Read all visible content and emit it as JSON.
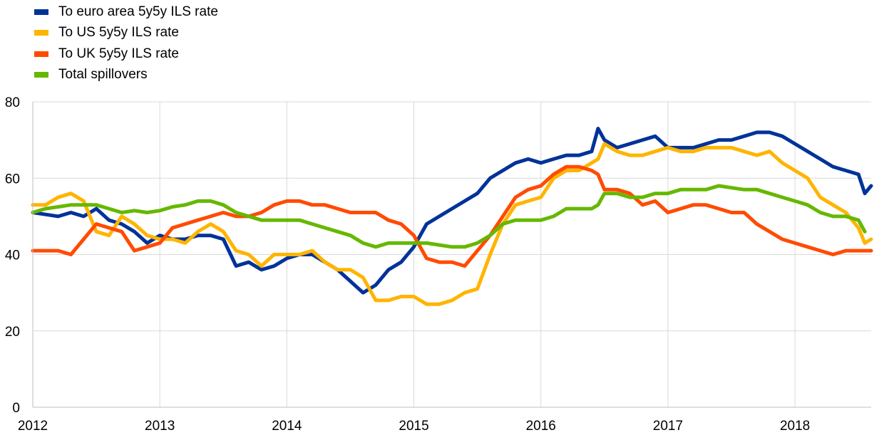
{
  "chart_data": {
    "type": "line",
    "title": "",
    "xlabel": "",
    "ylabel": "",
    "ylim": [
      0,
      80
    ],
    "yticks": [
      "0",
      "20",
      "40",
      "60",
      "80"
    ],
    "xlim": [
      2012.0,
      2018.6
    ],
    "xticks": [
      "2012",
      "2013",
      "2014",
      "2015",
      "2016",
      "2017",
      "2018"
    ],
    "grid": "horizontal",
    "legend_position": "top-left",
    "series": [
      {
        "name": "To euro area 5y5y ILS rate",
        "color": "#003299",
        "x": [
          2012.0,
          2012.1,
          2012.2,
          2012.3,
          2012.4,
          2012.5,
          2012.6,
          2012.7,
          2012.8,
          2012.9,
          2013.0,
          2013.1,
          2013.2,
          2013.3,
          2013.4,
          2013.5,
          2013.6,
          2013.7,
          2013.8,
          2013.9,
          2014.0,
          2014.1,
          2014.2,
          2014.3,
          2014.4,
          2014.5,
          2014.6,
          2014.7,
          2014.8,
          2014.9,
          2015.0,
          2015.1,
          2015.2,
          2015.3,
          2015.4,
          2015.5,
          2015.6,
          2015.7,
          2015.8,
          2015.9,
          2016.0,
          2016.1,
          2016.2,
          2016.3,
          2016.4,
          2016.45,
          2016.5,
          2016.6,
          2016.7,
          2016.8,
          2016.9,
          2017.0,
          2017.1,
          2017.2,
          2017.3,
          2017.4,
          2017.5,
          2017.6,
          2017.7,
          2017.8,
          2017.9,
          2018.0,
          2018.1,
          2018.2,
          2018.3,
          2018.4,
          2018.5,
          2018.55,
          2018.6
        ],
        "values": [
          51,
          50.5,
          50,
          51,
          50,
          52,
          49,
          48,
          46,
          43,
          45,
          44,
          44,
          45,
          45,
          44,
          37,
          38,
          36,
          37,
          39,
          40,
          40,
          38,
          36,
          33,
          30,
          32,
          36,
          38,
          42,
          48,
          50,
          52,
          54,
          56,
          60,
          62,
          64,
          65,
          64,
          65,
          66,
          66,
          67,
          73,
          70,
          68,
          69,
          70,
          71,
          68,
          68,
          68,
          69,
          70,
          70,
          71,
          72,
          72,
          71,
          69,
          67,
          65,
          63,
          62,
          61,
          56,
          58
        ]
      },
      {
        "name": "To US 5y5y ILS rate",
        "color": "#ffb400",
        "x": [
          2012.0,
          2012.1,
          2012.2,
          2012.3,
          2012.4,
          2012.5,
          2012.6,
          2012.7,
          2012.8,
          2012.9,
          2013.0,
          2013.1,
          2013.2,
          2013.3,
          2013.4,
          2013.5,
          2013.6,
          2013.7,
          2013.8,
          2013.9,
          2014.0,
          2014.1,
          2014.2,
          2014.3,
          2014.4,
          2014.5,
          2014.6,
          2014.7,
          2014.8,
          2014.9,
          2015.0,
          2015.1,
          2015.2,
          2015.3,
          2015.4,
          2015.5,
          2015.6,
          2015.7,
          2015.8,
          2015.9,
          2016.0,
          2016.1,
          2016.2,
          2016.3,
          2016.4,
          2016.45,
          2016.5,
          2016.6,
          2016.7,
          2016.8,
          2016.9,
          2017.0,
          2017.1,
          2017.2,
          2017.3,
          2017.4,
          2017.5,
          2017.6,
          2017.7,
          2017.8,
          2017.9,
          2018.0,
          2018.1,
          2018.2,
          2018.3,
          2018.4,
          2018.45,
          2018.5,
          2018.55,
          2018.6
        ],
        "values": [
          53,
          53,
          55,
          56,
          54,
          46,
          45,
          50,
          48,
          45,
          44,
          44,
          43,
          46,
          48,
          46,
          41,
          40,
          37,
          40,
          40,
          40,
          41,
          38,
          36,
          36,
          34,
          28,
          28,
          29,
          29,
          27,
          27,
          28,
          30,
          31,
          40,
          48,
          53,
          54,
          55,
          60,
          62,
          62,
          64,
          65,
          69,
          67,
          66,
          66,
          67,
          68,
          67,
          67,
          68,
          68,
          68,
          67,
          66,
          67,
          64,
          62,
          60,
          55,
          53,
          51,
          49,
          47,
          43,
          44
        ]
      },
      {
        "name": "To UK 5y5y ILS rate",
        "color": "#ff4b00",
        "x": [
          2012.0,
          2012.1,
          2012.2,
          2012.3,
          2012.4,
          2012.5,
          2012.6,
          2012.7,
          2012.8,
          2012.9,
          2013.0,
          2013.1,
          2013.2,
          2013.3,
          2013.4,
          2013.5,
          2013.6,
          2013.7,
          2013.8,
          2013.9,
          2014.0,
          2014.1,
          2014.2,
          2014.3,
          2014.4,
          2014.5,
          2014.6,
          2014.7,
          2014.8,
          2014.9,
          2015.0,
          2015.1,
          2015.2,
          2015.3,
          2015.4,
          2015.5,
          2015.6,
          2015.7,
          2015.8,
          2015.9,
          2016.0,
          2016.1,
          2016.2,
          2016.3,
          2016.4,
          2016.45,
          2016.5,
          2016.6,
          2016.7,
          2016.8,
          2016.9,
          2017.0,
          2017.1,
          2017.2,
          2017.3,
          2017.4,
          2017.5,
          2017.6,
          2017.7,
          2017.8,
          2017.9,
          2018.0,
          2018.1,
          2018.2,
          2018.3,
          2018.4,
          2018.5,
          2018.6
        ],
        "values": [
          41,
          41,
          41,
          40,
          44,
          48,
          47,
          46,
          41,
          42,
          43,
          47,
          48,
          49,
          50,
          51,
          50,
          50,
          51,
          53,
          54,
          54,
          53,
          53,
          52,
          51,
          51,
          51,
          49,
          48,
          45,
          39,
          38,
          38,
          37,
          41,
          45,
          50,
          55,
          57,
          58,
          61,
          63,
          63,
          62,
          61,
          57,
          57,
          56,
          53,
          54,
          51,
          52,
          53,
          53,
          52,
          51,
          51,
          48,
          46,
          44,
          43,
          42,
          41,
          40,
          41,
          41,
          41
        ]
      },
      {
        "name": "Total spillovers",
        "color": "#65b800",
        "x": [
          2012.0,
          2012.1,
          2012.2,
          2012.3,
          2012.4,
          2012.5,
          2012.6,
          2012.7,
          2012.8,
          2012.9,
          2013.0,
          2013.1,
          2013.2,
          2013.3,
          2013.4,
          2013.5,
          2013.6,
          2013.7,
          2013.8,
          2013.9,
          2014.0,
          2014.1,
          2014.2,
          2014.3,
          2014.4,
          2014.5,
          2014.6,
          2014.7,
          2014.8,
          2014.9,
          2015.0,
          2015.1,
          2015.2,
          2015.3,
          2015.4,
          2015.5,
          2015.6,
          2015.7,
          2015.8,
          2015.9,
          2016.0,
          2016.1,
          2016.2,
          2016.3,
          2016.4,
          2016.45,
          2016.5,
          2016.6,
          2016.7,
          2016.8,
          2016.9,
          2017.0,
          2017.1,
          2017.2,
          2017.3,
          2017.4,
          2017.5,
          2017.6,
          2017.7,
          2017.8,
          2017.9,
          2018.0,
          2018.1,
          2018.2,
          2018.3,
          2018.4,
          2018.5,
          2018.55
        ],
        "values": [
          51,
          52,
          52.5,
          53,
          53,
          53,
          52,
          51,
          51.5,
          51,
          51.5,
          52.5,
          53,
          54,
          54,
          53,
          51,
          50,
          49,
          49,
          49,
          49,
          48,
          47,
          46,
          45,
          43,
          42,
          43,
          43,
          43,
          43,
          42.5,
          42,
          42,
          43,
          45,
          48,
          49,
          49,
          49,
          50,
          52,
          52,
          52,
          53,
          56,
          56,
          55,
          55,
          56,
          56,
          57,
          57,
          57,
          58,
          57.5,
          57,
          57,
          56,
          55,
          54,
          53,
          51,
          50,
          50,
          49,
          46
        ]
      }
    ]
  }
}
